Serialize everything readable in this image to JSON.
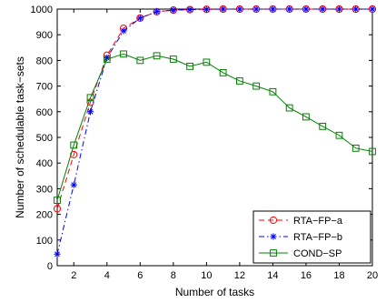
{
  "chart_data": {
    "type": "line",
    "title": "",
    "xlabel": "Number of tasks",
    "ylabel": "Number of schedulable task−sets",
    "xlim": [
      1,
      20
    ],
    "ylim": [
      0,
      1000
    ],
    "x_ticks": [
      2,
      4,
      6,
      8,
      10,
      12,
      14,
      16,
      18,
      20
    ],
    "y_ticks": [
      0,
      100,
      200,
      300,
      400,
      500,
      600,
      700,
      800,
      900,
      1000
    ],
    "grid": false,
    "legend_position": "bottom-right",
    "x": [
      1,
      2,
      3,
      4,
      5,
      6,
      7,
      8,
      9,
      10,
      11,
      12,
      13,
      14,
      15,
      16,
      17,
      18,
      19,
      20
    ],
    "series": [
      {
        "name": "RTA−FP−a",
        "color": "#ff0000",
        "line_style": "dashed",
        "marker": "circle",
        "values": [
          222,
          433,
          637,
          820,
          925,
          965,
          990,
          996,
          998,
          999,
          1000,
          1000,
          1000,
          1000,
          1000,
          1000,
          1000,
          1000,
          1000,
          1000
        ]
      },
      {
        "name": "RTA−FP−b",
        "color": "#0000ff",
        "line_style": "dashdot",
        "marker": "star",
        "values": [
          45,
          315,
          600,
          810,
          915,
          965,
          990,
          996,
          998,
          999,
          1000,
          1000,
          1000,
          1000,
          1000,
          1000,
          1000,
          1000,
          1000,
          1000
        ]
      },
      {
        "name": "COND−SP",
        "color": "#008000",
        "line_style": "solid",
        "marker": "square",
        "values": [
          255,
          470,
          655,
          805,
          825,
          800,
          818,
          805,
          777,
          793,
          752,
          720,
          700,
          678,
          615,
          580,
          543,
          508,
          458,
          445
        ]
      }
    ]
  }
}
